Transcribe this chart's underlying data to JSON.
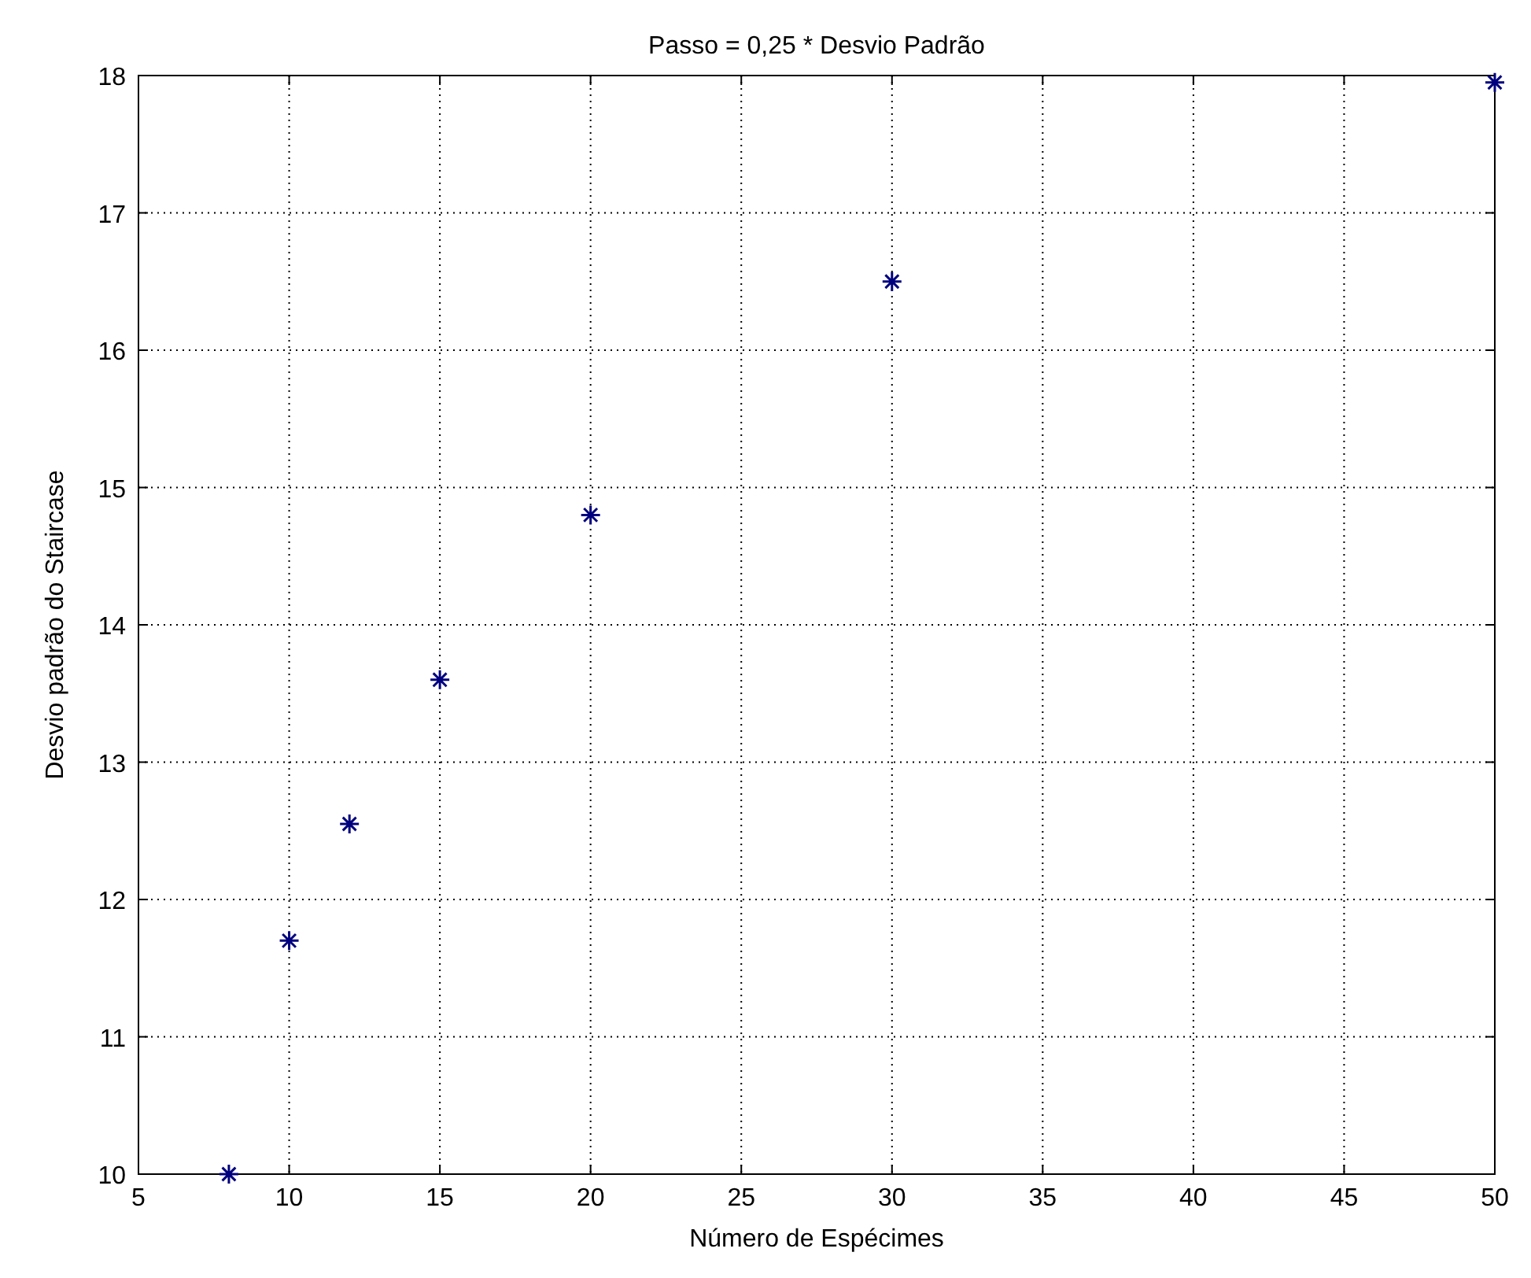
{
  "chart_data": {
    "type": "scatter",
    "title": "Passo = 0,25 * Desvio Padrão",
    "xlabel": "Número de Espécimes",
    "ylabel": "Desvio padrão do Staircase",
    "x": [
      8,
      10,
      12,
      15,
      20,
      30,
      50
    ],
    "series": [
      {
        "color": "#00007f",
        "values": [
          10.0,
          11.7,
          12.55,
          13.6,
          14.8,
          16.5,
          17.95
        ]
      }
    ],
    "xlim": [
      5,
      50
    ],
    "xticks": [
      5,
      10,
      15,
      20,
      25,
      30,
      35,
      40,
      45,
      50
    ],
    "ylim": [
      10,
      18
    ],
    "yticks": [
      10,
      11,
      12,
      13,
      14,
      15,
      16,
      17,
      18
    ],
    "grid": true,
    "marker": "cross"
  }
}
